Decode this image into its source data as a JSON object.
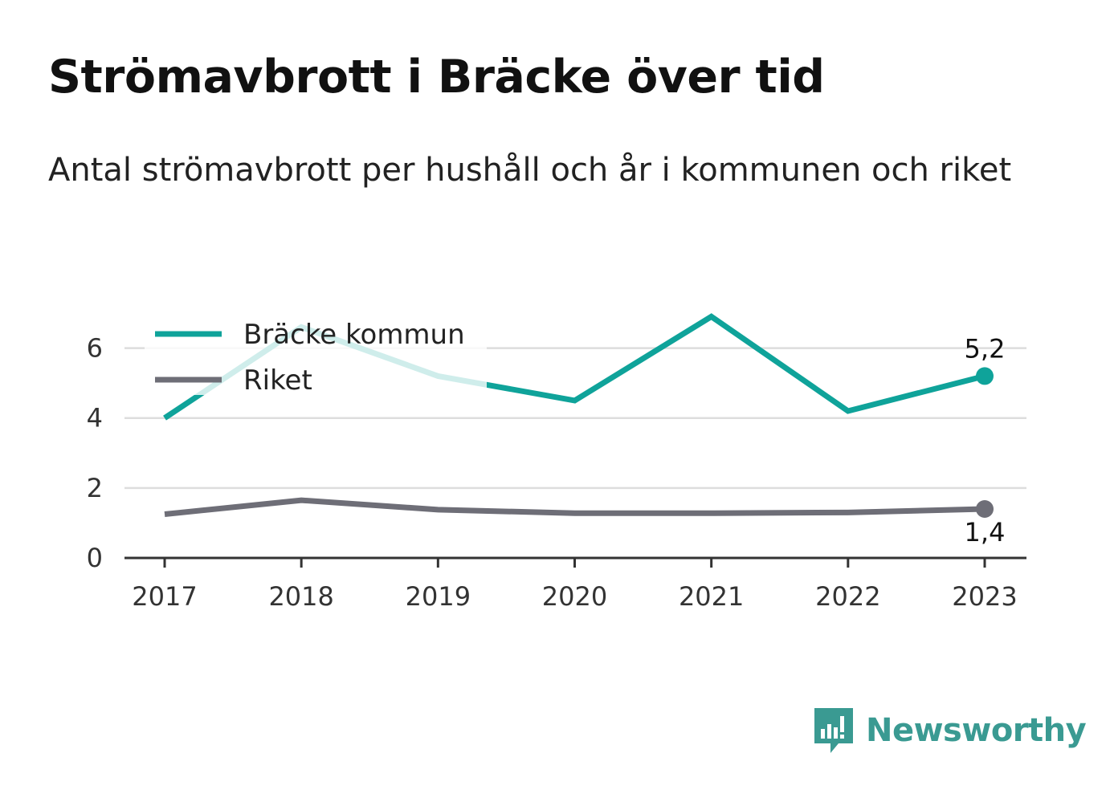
{
  "title": "Strömavbrott i Bräcke över tid",
  "subtitle": "Antal strömavbrott per hushåll och år i kommunen och riket",
  "brand": {
    "name": "Newsworthy",
    "logo_icon": "newsworthy-bar-chart-speech-bubble-icon",
    "color": "#3a9a92"
  },
  "chart_data": {
    "type": "line",
    "x": [
      "2017",
      "2018",
      "2019",
      "2020",
      "2021",
      "2022",
      "2023"
    ],
    "ylim": [
      0,
      7
    ],
    "yticks": [
      "0",
      "2",
      "4",
      "6"
    ],
    "grid": true,
    "legend_position": "top-left",
    "series": [
      {
        "name": "Bräcke kommun",
        "color": "#0fa39a",
        "values": [
          4.0,
          6.6,
          5.2,
          4.5,
          6.9,
          4.2,
          5.2
        ],
        "end_label": "5,2"
      },
      {
        "name": "Riket",
        "color": "#6e6e77",
        "values": [
          1.25,
          1.65,
          1.38,
          1.28,
          1.28,
          1.3,
          1.4
        ],
        "end_label": "1,4"
      }
    ]
  }
}
